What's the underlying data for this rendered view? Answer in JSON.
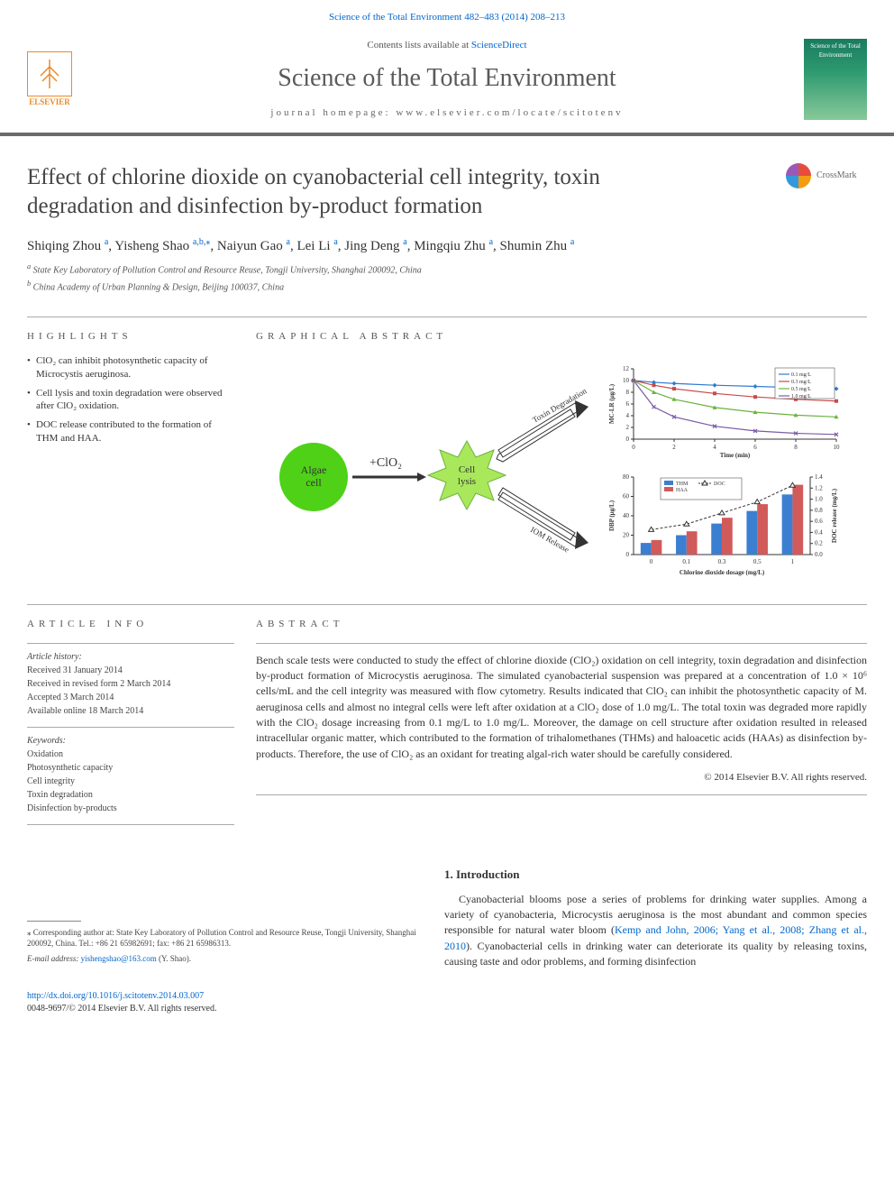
{
  "top_citation": "Science of the Total Environment 482–483 (2014) 208–213",
  "masthead": {
    "publisher": "ELSEVIER",
    "contents_prefix": "Contents lists available at ",
    "contents_link": "ScienceDirect",
    "journal": "Science of the Total Environment",
    "homepage_label": "journal homepage: ",
    "homepage_url": "www.elsevier.com/locate/scitotenv",
    "cover_label": "Science of the Total Environment"
  },
  "title_line1": "Effect of chlorine dioxide on cyanobacterial cell integrity, toxin",
  "title_line2": "degradation and disinfection by-product formation",
  "crossmark": "CrossMark",
  "authors_html": "Shiqing Zhou ᵃ, Yisheng Shao ᵃ·ᵇ·⁎, Naiyun Gao ᵃ, Lei Li ᵃ, Jing Deng ᵃ, Mingqiu Zhu ᵃ, Shumin Zhu ᵃ",
  "authors": [
    {
      "name": "Shiqing Zhou",
      "aff": "a"
    },
    {
      "name": "Yisheng Shao",
      "aff": "a,b,",
      "corr": true
    },
    {
      "name": "Naiyun Gao",
      "aff": "a"
    },
    {
      "name": "Lei Li",
      "aff": "a"
    },
    {
      "name": "Jing Deng",
      "aff": "a"
    },
    {
      "name": "Mingqiu Zhu",
      "aff": "a"
    },
    {
      "name": "Shumin Zhu",
      "aff": "a"
    }
  ],
  "affiliations": {
    "a": "State Key Laboratory of Pollution Control and Resource Reuse, Tongji University, Shanghai 200092, China",
    "b": "China Academy of Urban Planning & Design, Beijing 100037, China"
  },
  "highlights_label": "HIGHLIGHTS",
  "highlights": [
    "ClO₂ can inhibit photosynthetic capacity of Microcystis aeruginosa.",
    "Cell lysis and toxin degradation were observed after ClO₂ oxidation.",
    "DOC release contributed to the formation of THM and HAA."
  ],
  "graphical_label": "GRAPHICAL ABSTRACT",
  "graphical": {
    "nodes": {
      "algae": {
        "label": "Algae\ncell",
        "fill": "#4fd117",
        "text": "#333333"
      },
      "lysis": {
        "label": "Cell\nlysis",
        "fill": "#a8e85a",
        "text": "#333333"
      },
      "arrow1_label": "+ClO₂",
      "toxin_arrow": "Toxin Degradation",
      "iom_arrow": "IOM Release"
    },
    "line_chart": {
      "type": "line",
      "xlabel": "Time (min)",
      "ylabel": "MC-LR (μg/L)",
      "xlim": [
        0,
        10
      ],
      "ylim": [
        0,
        12
      ],
      "xticks": [
        0,
        2,
        4,
        6,
        8,
        10
      ],
      "yticks": [
        0,
        2,
        4,
        6,
        8,
        10,
        12
      ],
      "series": [
        {
          "label": "0.1 mg/L",
          "color": "#2e7bd1",
          "marker": "diamond",
          "x": [
            0,
            1,
            2,
            4,
            6,
            8,
            10
          ],
          "y": [
            10,
            9.7,
            9.5,
            9.2,
            9.0,
            8.8,
            8.6
          ]
        },
        {
          "label": "0.3 mg/L",
          "color": "#c94a4a",
          "marker": "square",
          "x": [
            0,
            1,
            2,
            4,
            6,
            8,
            10
          ],
          "y": [
            10,
            9.2,
            8.6,
            7.8,
            7.2,
            6.8,
            6.5
          ]
        },
        {
          "label": "0.5 mg/L",
          "color": "#6cb33f",
          "marker": "triangle",
          "x": [
            0,
            1,
            2,
            4,
            6,
            8,
            10
          ],
          "y": [
            10,
            8.0,
            6.8,
            5.4,
            4.6,
            4.1,
            3.8
          ]
        },
        {
          "label": "1.0 mg/L",
          "color": "#7a5ba8",
          "marker": "x",
          "x": [
            0,
            1,
            2,
            4,
            6,
            8,
            10
          ],
          "y": [
            10,
            5.5,
            3.8,
            2.2,
            1.4,
            1.0,
            0.8
          ]
        }
      ],
      "background_color": "#ffffff",
      "axis_color": "#333333",
      "label_fontsize": 8,
      "legend_pos": "top-right"
    },
    "bar_chart": {
      "type": "bar+line",
      "xlabel": "Chlorine dioxide dosage (mg/L)",
      "ylabel_left": "DBP (μg/L)",
      "ylabel_right": "DOC release (mg/L)",
      "categories": [
        "0",
        "0.1",
        "0.3",
        "0.5",
        "1"
      ],
      "series": [
        {
          "label": "THM",
          "color": "#3b7fd1",
          "type": "bar",
          "values": [
            12,
            20,
            32,
            45,
            62
          ]
        },
        {
          "label": "HAA",
          "color": "#d15a5a",
          "type": "bar",
          "values": [
            15,
            24,
            38,
            52,
            72
          ]
        },
        {
          "label": "DOC",
          "color": "#333333",
          "type": "line-dash",
          "marker": "triangle-open",
          "values_right": [
            0.45,
            0.55,
            0.75,
            0.95,
            1.25
          ]
        }
      ],
      "ylim_left": [
        0,
        80
      ],
      "ytick_left": [
        0,
        20,
        40,
        60,
        80
      ],
      "ylim_right": [
        0,
        1.4
      ],
      "ytick_right": [
        0.0,
        0.2,
        0.4,
        0.6,
        0.8,
        1.0,
        1.2,
        1.4
      ],
      "background_color": "#ffffff",
      "axis_color": "#333333",
      "label_fontsize": 8,
      "bar_width": 0.35,
      "legend_pos": "top-center"
    }
  },
  "article_info_label": "ARTICLE INFO",
  "article_info": {
    "history_heading": "Article history:",
    "history": [
      "Received 31 January 2014",
      "Received in revised form 2 March 2014",
      "Accepted 3 March 2014",
      "Available online 18 March 2014"
    ],
    "keywords_heading": "Keywords:",
    "keywords": [
      "Oxidation",
      "Photosynthetic capacity",
      "Cell integrity",
      "Toxin degradation",
      "Disinfection by-products"
    ]
  },
  "abstract_label": "ABSTRACT",
  "abstract": "Bench scale tests were conducted to study the effect of chlorine dioxide (ClO₂) oxidation on cell integrity, toxin degradation and disinfection by-product formation of Microcystis aeruginosa. The simulated cyanobacterial suspension was prepared at a concentration of 1.0 × 10⁶ cells/mL and the cell integrity was measured with flow cytometry. Results indicated that ClO₂ can inhibit the photosynthetic capacity of M. aeruginosa cells and almost no integral cells were left after oxidation at a ClO₂ dose of 1.0 mg/L. The total toxin was degraded more rapidly with the ClO₂ dosage increasing from 0.1 mg/L to 1.0 mg/L. Moreover, the damage on cell structure after oxidation resulted in released intracellular organic matter, which contributed to the formation of trihalomethanes (THMs) and haloacetic acids (HAAs) as disinfection by-products. Therefore, the use of ClO₂ as an oxidant for treating algal-rich water should be carefully considered.",
  "copyright": "© 2014 Elsevier B.V. All rights reserved.",
  "intro": {
    "heading": "1. Introduction",
    "text_pre": "Cyanobacterial blooms pose a series of problems for drinking water supplies. Among a variety of cyanobacteria, Microcystis aeruginosa is the most abundant and common species responsible for natural water bloom (",
    "refs": "Kemp and John, 2006; Yang et al., 2008; Zhang et al., 2010",
    "text_post": "). Cyanobacterial cells in drinking water can deteriorate its quality by releasing toxins, causing taste and odor problems, and forming disinfection"
  },
  "footnote": {
    "corr_prefix": "⁎ Corresponding author at: State Key Laboratory of Pollution Control and Resource Reuse, Tongji University, Shanghai 200092, China. Tel.: +86 21 65982691; fax: +86 21 65986313.",
    "email_label": "E-mail address: ",
    "email": "yishengshao@163.com",
    "email_suffix": " (Y. Shao)."
  },
  "doi": {
    "url": "http://dx.doi.org/10.1016/j.scitotenv.2014.03.007",
    "issn": "0048-9697/© 2014 Elsevier B.V. All rights reserved."
  },
  "colors": {
    "link": "#0066cc",
    "rule": "#6b6b6b",
    "elsevier": "#e98b2c",
    "text": "#333333"
  }
}
